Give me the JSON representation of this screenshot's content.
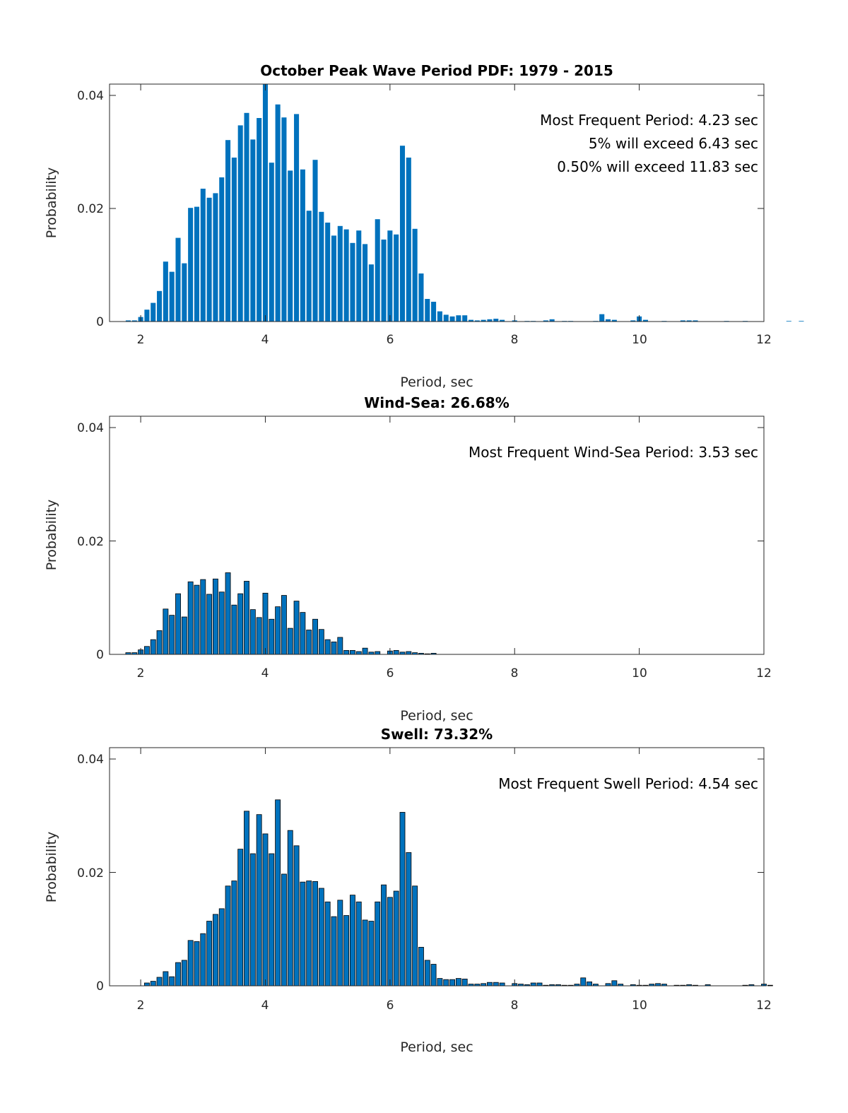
{
  "chart_data": [
    {
      "type": "bar",
      "title": "October Peak Wave Period PDF: 1979 - 2015",
      "xlabel": "Period, sec",
      "ylabel": "Probability",
      "xlim": [
        1.5,
        12
      ],
      "ylim": [
        0,
        0.042
      ],
      "xticks": [
        "2",
        "4",
        "6",
        "8",
        "10",
        "12"
      ],
      "xtick_values": [
        2,
        4,
        6,
        8,
        10,
        12
      ],
      "yticks": [
        "0",
        "0.02",
        "0.04"
      ],
      "ytick_values": [
        0,
        0.02,
        0.04
      ],
      "bar_color": "#0072BD",
      "bar_edge": "#0072BD",
      "bin_start": 1.8,
      "bin_width": 0.1,
      "annotations": [
        "Most Frequent Period: 4.23 sec",
        "5% will exceed 6.43 sec",
        "0.50% will exceed 11.83 sec"
      ],
      "values": [
        0.0002,
        0.0002,
        0.0008,
        0.0021,
        0.0033,
        0.0054,
        0.0106,
        0.0088,
        0.0148,
        0.0103,
        0.0201,
        0.0203,
        0.0235,
        0.0219,
        0.0227,
        0.0255,
        0.0321,
        0.029,
        0.0347,
        0.0369,
        0.0322,
        0.036,
        0.042,
        0.0281,
        0.0384,
        0.0361,
        0.0267,
        0.0367,
        0.0269,
        0.0196,
        0.0286,
        0.0194,
        0.0175,
        0.0152,
        0.0169,
        0.0163,
        0.0139,
        0.0161,
        0.0137,
        0.0101,
        0.0181,
        0.0145,
        0.0161,
        0.0154,
        0.0311,
        0.029,
        0.0164,
        0.0085,
        0.004,
        0.0035,
        0.0018,
        0.0012,
        0.0009,
        0.0011,
        0.0011,
        0.0003,
        0.0002,
        0.0003,
        0.0004,
        0.0005,
        0.0003,
        0,
        0.0002,
        0,
        0.0001,
        0.0001,
        0,
        0.0002,
        0.0004,
        0,
        0.0001,
        0.0001,
        0,
        0,
        0,
        0.0001,
        0.0013,
        0.0004,
        0.0003,
        0,
        0,
        0.0002,
        0.0009,
        0.0003,
        0,
        0,
        0.0001,
        0,
        0,
        0.0002,
        0.0002,
        0.0002,
        0,
        0,
        0,
        0,
        0.0001,
        0,
        0,
        0.0001,
        0,
        0,
        0,
        0,
        0,
        0,
        0.0001,
        0,
        0.0001,
        0,
        0
      ]
    },
    {
      "type": "bar",
      "title": "Wind-Sea: 26.68%",
      "xlabel": "Period, sec",
      "ylabel": "Probability",
      "xlim": [
        1.5,
        12
      ],
      "ylim": [
        0,
        0.042
      ],
      "xticks": [
        "2",
        "4",
        "6",
        "8",
        "10",
        "12"
      ],
      "xtick_values": [
        2,
        4,
        6,
        8,
        10,
        12
      ],
      "yticks": [
        "0",
        "0.02",
        "0.04"
      ],
      "ytick_values": [
        0,
        0.02,
        0.04
      ],
      "bar_color": "#0072BD",
      "bar_edge": "#000000",
      "bin_start": 1.8,
      "bin_width": 0.1,
      "annotations": [
        "Most Frequent Wind-Sea Period: 3.53 sec"
      ],
      "values": [
        0.0003,
        0.0003,
        0.0008,
        0.0014,
        0.0026,
        0.0042,
        0.008,
        0.0069,
        0.0107,
        0.0066,
        0.0128,
        0.0122,
        0.0132,
        0.0106,
        0.0133,
        0.011,
        0.0144,
        0.0087,
        0.0107,
        0.0129,
        0.0079,
        0.0065,
        0.0108,
        0.0062,
        0.0084,
        0.0104,
        0.0046,
        0.0094,
        0.0074,
        0.0043,
        0.0062,
        0.0044,
        0.0026,
        0.0022,
        0.003,
        0.0007,
        0.0007,
        0.0005,
        0.0011,
        0.0004,
        0.0005,
        0,
        0.0006,
        0.0007,
        0.0004,
        0.0005,
        0.0003,
        0.0002,
        0.0001,
        0.0002
      ]
    },
    {
      "type": "bar",
      "title": "Swell: 73.32%",
      "xlabel": "Period, sec",
      "ylabel": "Probability",
      "xlim": [
        1.5,
        12
      ],
      "ylim": [
        0,
        0.042
      ],
      "xticks": [
        "2",
        "4",
        "6",
        "8",
        "10",
        "12"
      ],
      "xtick_values": [
        2,
        4,
        6,
        8,
        10,
        12
      ],
      "yticks": [
        "0",
        "0.02",
        "0.04"
      ],
      "ytick_values": [
        0,
        0.02,
        0.04
      ],
      "bar_color": "#0072BD",
      "bar_edge": "#000000",
      "bin_start": 2.1,
      "bin_width": 0.1,
      "annotations": [
        "Most Frequent Swell Period: 4.54 sec"
      ],
      "values": [
        0.0005,
        0.0008,
        0.0015,
        0.0025,
        0.0016,
        0.0041,
        0.0045,
        0.008,
        0.0078,
        0.0092,
        0.0114,
        0.0126,
        0.0136,
        0.0176,
        0.0185,
        0.0241,
        0.0308,
        0.0233,
        0.0302,
        0.0268,
        0.0233,
        0.0328,
        0.0197,
        0.0274,
        0.0247,
        0.0183,
        0.0185,
        0.0184,
        0.0172,
        0.0148,
        0.0122,
        0.0151,
        0.0124,
        0.016,
        0.0148,
        0.0116,
        0.0114,
        0.0148,
        0.0178,
        0.0156,
        0.0167,
        0.0306,
        0.0235,
        0.0176,
        0.0068,
        0.0045,
        0.0038,
        0.0013,
        0.0011,
        0.0011,
        0.0013,
        0.0012,
        0.0003,
        0.0003,
        0.0004,
        0.0006,
        0.0006,
        0.0005,
        0,
        0.0004,
        0.0003,
        0.0002,
        0.0005,
        0.0005,
        0.0001,
        0.0002,
        0.0002,
        0.0001,
        0.0001,
        0.0003,
        0.0014,
        0.0007,
        0.0003,
        0,
        0.0004,
        0.0009,
        0.0003,
        0,
        0.0002,
        0.0001,
        0.0001,
        0.0003,
        0.0004,
        0.0003,
        0,
        0.0001,
        0.0001,
        0.0002,
        0.0001,
        0,
        0.0002,
        0,
        0,
        0,
        0,
        0,
        0.0001,
        0.0002,
        0,
        0.0003,
        0.0001
      ]
    }
  ]
}
